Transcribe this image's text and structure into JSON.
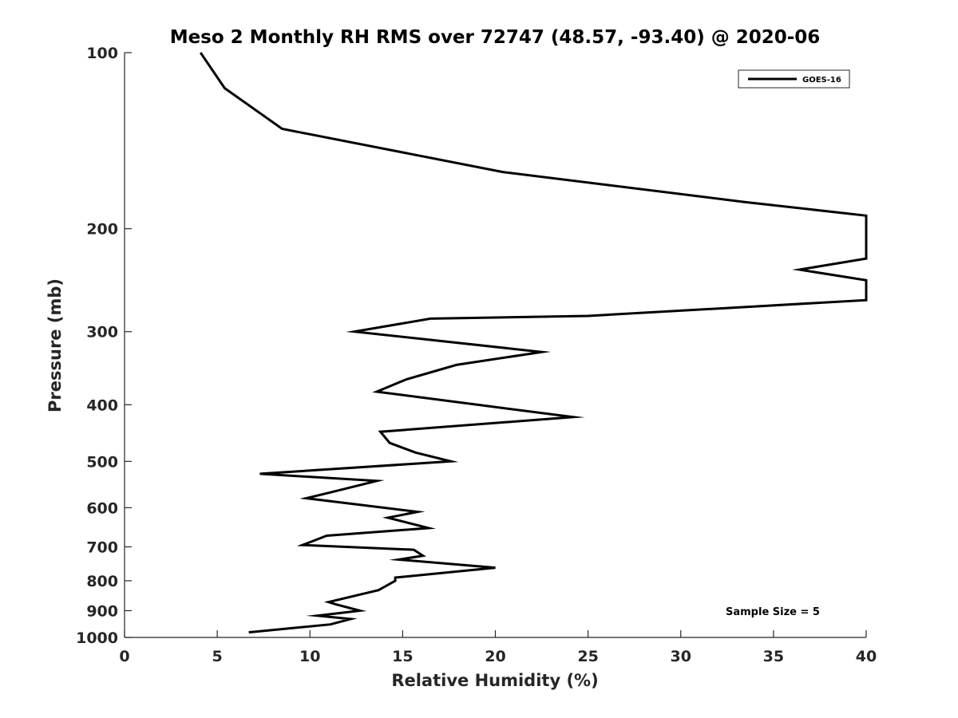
{
  "chart_data": {
    "type": "line",
    "title": "Meso 2 Monthly RH RMS over 72747 (48.57, -93.40) @ 2020-06",
    "xlabel": "Relative Humidity (%)",
    "ylabel": "Pressure (mb)",
    "xlim": [
      0,
      40
    ],
    "ylim": [
      100,
      1000
    ],
    "y_scale": "log",
    "y_reversed": true,
    "x_ticks": [
      "0",
      "5",
      "10",
      "15",
      "20",
      "25",
      "30",
      "35",
      "40"
    ],
    "x_tick_values": [
      0,
      5,
      10,
      15,
      20,
      25,
      30,
      35,
      40
    ],
    "y_ticks": [
      "100",
      "200",
      "300",
      "400",
      "500",
      "600",
      "700",
      "800",
      "900",
      "1000"
    ],
    "y_tick_values": [
      100,
      200,
      300,
      400,
      500,
      600,
      700,
      800,
      900,
      1000
    ],
    "legend_position": "top-right",
    "grid": false,
    "series": [
      {
        "name": "GOES-16",
        "color": "#000000",
        "points": [
          [
            4.1,
            100
          ],
          [
            5.4,
            115
          ],
          [
            8.5,
            135
          ],
          [
            20.4,
            160
          ],
          [
            33.4,
            180
          ],
          [
            40.0,
            190
          ],
          [
            40.0,
            225
          ],
          [
            36.4,
            235
          ],
          [
            40.0,
            245
          ],
          [
            40.0,
            265
          ],
          [
            25.0,
            282
          ],
          [
            16.5,
            285
          ],
          [
            12.4,
            300
          ],
          [
            22.5,
            325
          ],
          [
            17.9,
            342
          ],
          [
            15.2,
            362
          ],
          [
            13.6,
            380
          ],
          [
            24.2,
            420
          ],
          [
            13.8,
            445
          ],
          [
            14.3,
            465
          ],
          [
            15.7,
            483
          ],
          [
            17.6,
            500
          ],
          [
            7.3,
            525
          ],
          [
            13.6,
            540
          ],
          [
            11.2,
            564
          ],
          [
            9.8,
            578
          ],
          [
            15.8,
            610
          ],
          [
            14.2,
            624
          ],
          [
            16.4,
            650
          ],
          [
            10.9,
            670
          ],
          [
            9.6,
            695
          ],
          [
            15.6,
            708
          ],
          [
            16.1,
            725
          ],
          [
            14.8,
            736
          ],
          [
            20.0,
            760
          ],
          [
            14.6,
            790
          ],
          [
            14.6,
            800
          ],
          [
            13.7,
            830
          ],
          [
            11.0,
            870
          ],
          [
            11.4,
            878
          ],
          [
            12.7,
            900
          ],
          [
            10.4,
            918
          ],
          [
            12.2,
            930
          ],
          [
            11.1,
            950
          ],
          [
            6.7,
            980
          ]
        ]
      }
    ],
    "annotations": [
      "Sample Size = 5"
    ]
  }
}
